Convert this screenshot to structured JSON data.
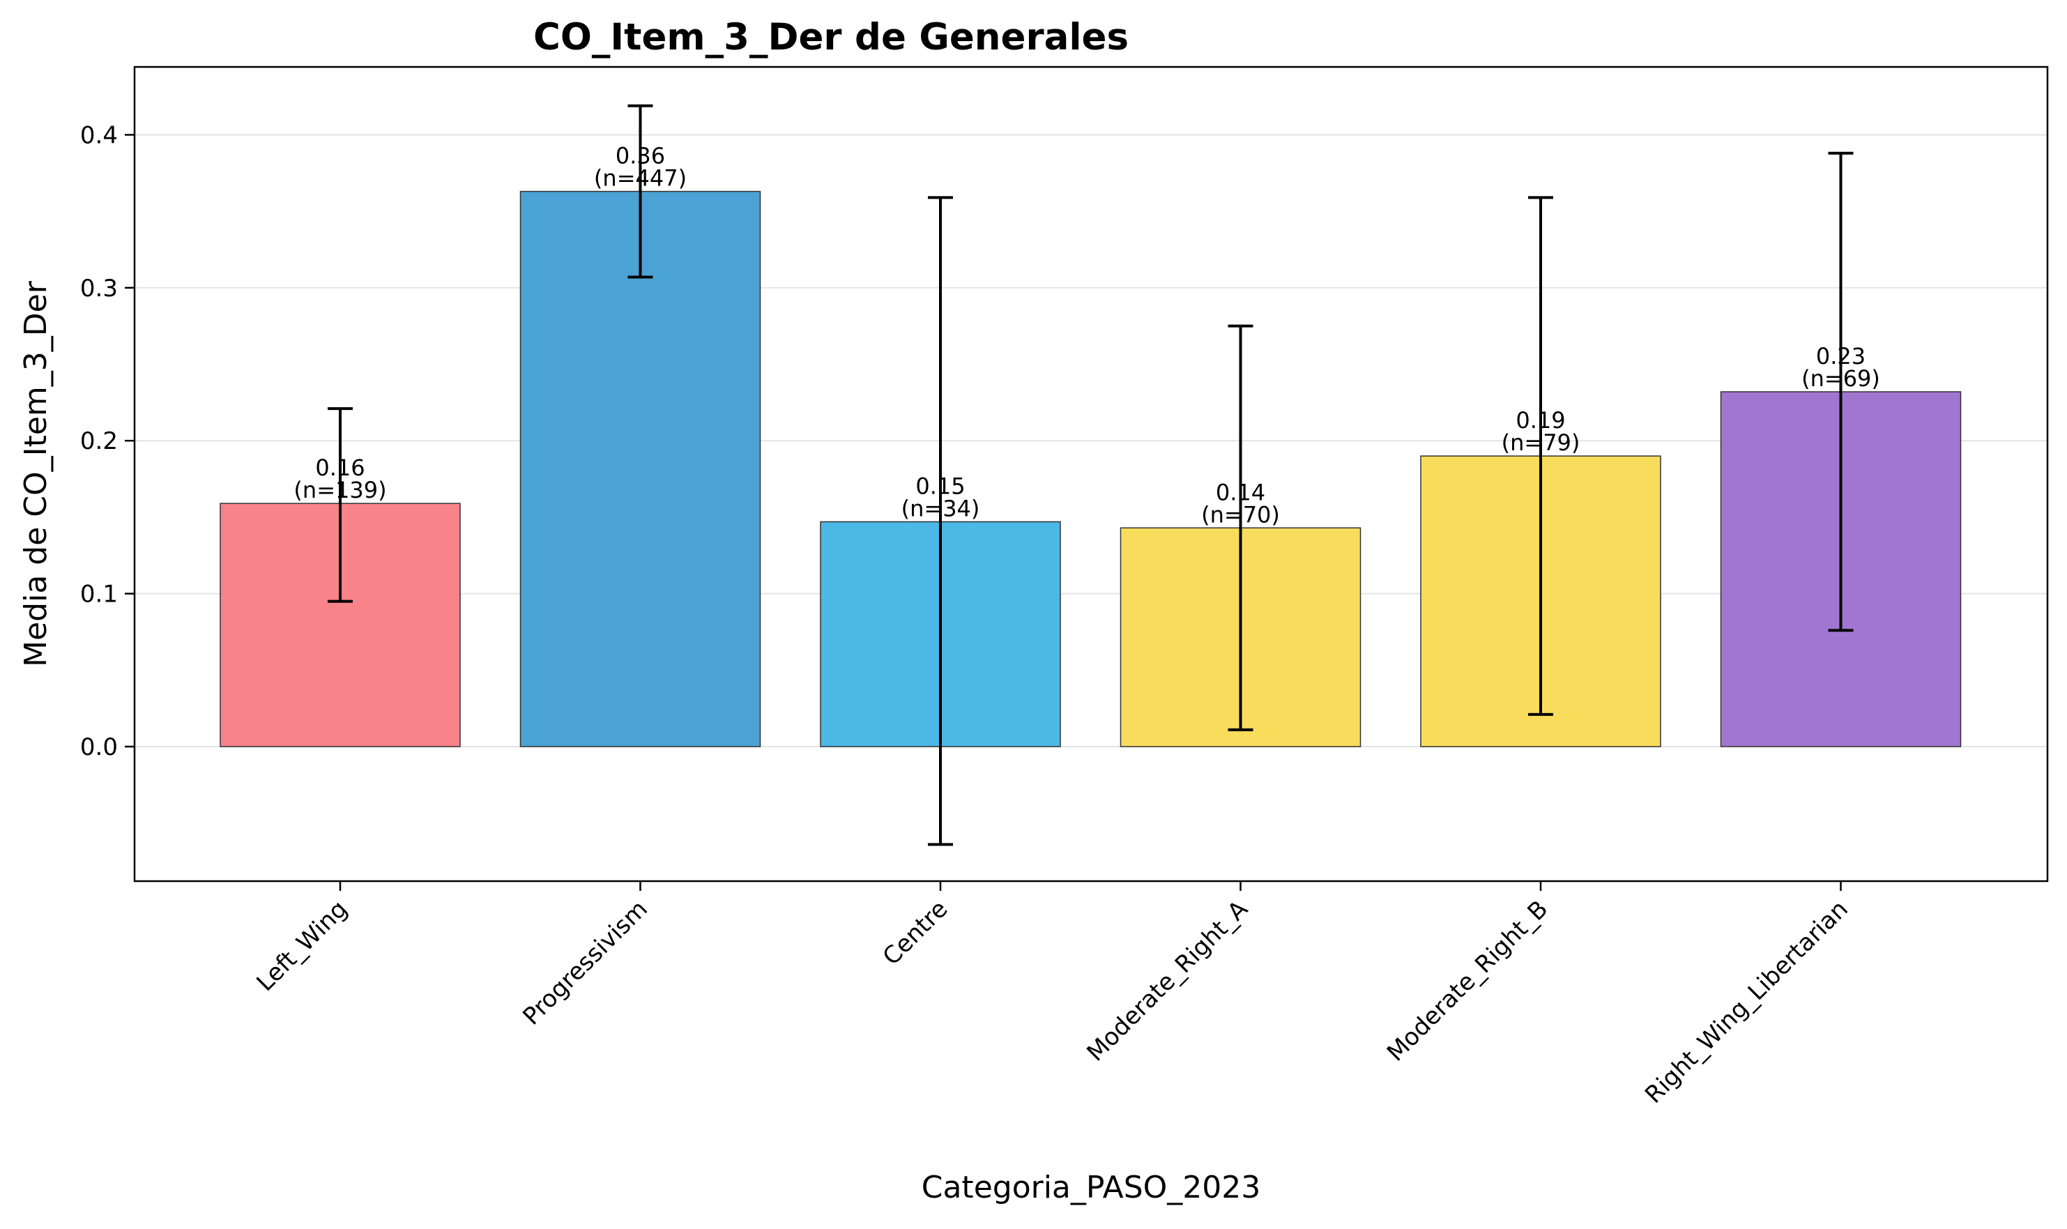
{
  "chart_data": {
    "type": "bar",
    "title": "CO_Item_3_Der de Generales",
    "xlabel": "Categoria_PASO_2023",
    "ylabel": "Media de CO_Item_3_Der",
    "ylim": [
      -0.088,
      0.44
    ],
    "yticks": [
      0.0,
      0.1,
      0.2,
      0.3,
      0.4
    ],
    "ytick_labels": [
      "0.0",
      "0.1",
      "0.2",
      "0.3",
      "0.4"
    ],
    "grid": "y",
    "categories": [
      "Left_Wing",
      "Progressivism",
      "Centre",
      "Moderate_Right_A",
      "Moderate_Right_B",
      "Right_Wing_Libertarian"
    ],
    "values": [
      0.159,
      0.363,
      0.147,
      0.143,
      0.19,
      0.232
    ],
    "error_low": [
      0.095,
      0.307,
      -0.064,
      0.011,
      0.021,
      0.076
    ],
    "error_high": [
      0.221,
      0.419,
      0.359,
      0.275,
      0.359,
      0.388
    ],
    "value_labels": [
      "0.16",
      "0.36",
      "0.15",
      "0.14",
      "0.19",
      "0.23"
    ],
    "n_labels": [
      "(n=139)",
      "(n=447)",
      "(n=34)",
      "(n=70)",
      "(n=79)",
      "(n=69)"
    ],
    "colors": [
      "#f8838a",
      "#4ba2d4",
      "#4bb8e6",
      "#f8dc5c",
      "#f8dc5c",
      "#a076d0"
    ]
  }
}
